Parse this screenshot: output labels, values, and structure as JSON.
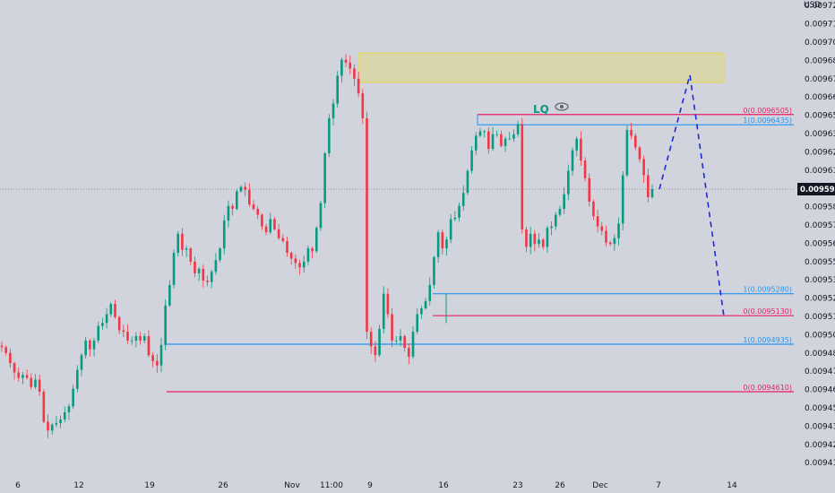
{
  "chart_data": {
    "type": "candlestick",
    "currency": "USD",
    "y_ticks": [
      "0.0097250",
      "0.0097125",
      "0.0097000",
      "0.0096875",
      "0.0096750",
      "0.0096625",
      "0.0096500",
      "0.0096375",
      "0.0096250",
      "0.0096125",
      "0.0095875",
      "0.0095750",
      "0.0095625",
      "0.0095500",
      "0.0095375",
      "0.0095250",
      "0.0095125",
      "0.0095000",
      "0.0094875",
      "0.0094750",
      "0.0094625",
      "0.0094500",
      "0.0094375",
      "0.0094250",
      "0.0094125"
    ],
    "ylim": [
      0.0094075,
      0.0097325
    ],
    "x_ticks": [
      "6",
      "12",
      "19",
      "26",
      "Nov",
      "11:00",
      "9",
      "16",
      "23",
      "26",
      "Dec",
      "7",
      "14"
    ],
    "current_price": {
      "label": "0.0095995",
      "value": 0.0095995
    },
    "annotations": {
      "lq_label": "LQ"
    },
    "fib_levels": [
      {
        "label": "0(0.0096505)",
        "value": 0.0096505,
        "color": "#e91e63"
      },
      {
        "label": "1(0.0096435)",
        "value": 0.0096435,
        "color": "#2196f3"
      },
      {
        "label": "1(0.0095280)",
        "value": 0.009528,
        "color": "#2196f3"
      },
      {
        "label": "0(0.0095130)",
        "value": 0.009513,
        "color": "#e91e63"
      },
      {
        "label": "1(0.0094935)",
        "value": 0.0094935,
        "color": "#2196f3"
      },
      {
        "label": "0(0.0094610)",
        "value": 0.009461,
        "color": "#e91e63"
      }
    ],
    "supply_zone": {
      "low": 0.0096725,
      "high": 0.0096925
    },
    "projection": {
      "x_labels": [
        "7",
        "~10",
        "~13"
      ],
      "y": [
        0.0095995,
        0.0096775,
        0.0095125
      ]
    },
    "series_close_path": [
      0.0094915,
      0.0094875,
      0.0094805,
      0.0094742,
      0.0094705,
      0.0094725,
      0.0094705,
      0.0094643,
      0.0094693,
      0.009461,
      0.0094405,
      0.0094345,
      0.0094385,
      0.0094395,
      0.0094421,
      0.009447,
      0.009451,
      0.009463,
      0.009476,
      0.009486,
      0.009496,
      0.00949,
      0.009496,
      0.009506,
      0.009508,
      0.009514,
      0.009521,
      0.009512,
      0.009503,
      0.009502,
      0.009496,
      0.009496,
      0.009499,
      0.009496,
      0.009499,
      0.009486,
      0.009482,
      0.009479,
      0.009493,
      0.00952,
      0.009534,
      0.009556,
      0.009569,
      0.009558,
      0.009559,
      0.00955,
      0.009542,
      0.009545,
      0.009537,
      0.009536,
      0.009543,
      0.009551,
      0.009559,
      0.009578,
      0.009588,
      0.009586,
      0.009598,
      0.009601,
      0.009599,
      0.009589,
      0.009586,
      0.009582,
      0.009574,
      0.00957,
      0.009579,
      0.009572,
      0.009566,
      0.009564,
      0.009556,
      0.009552,
      0.009549,
      0.009546,
      0.00955,
      0.009559,
      0.009557,
      0.009573,
      0.00959,
      0.009624,
      0.009648,
      0.009658,
      0.009677,
      0.009688,
      0.009686,
      0.009682,
      0.009675,
      0.009665,
      0.009648,
      0.009502,
      0.009492,
      0.009486,
      0.009504,
      0.009528,
      0.009514,
      0.009496,
      0.009496,
      0.009499,
      0.009491,
      0.009485,
      0.009502,
      0.009514,
      0.009518,
      0.009523,
      0.009534,
      0.009553,
      0.00957,
      0.009559,
      0.009565,
      0.009579,
      0.00958,
      0.009588,
      0.009597,
      0.009612,
      0.009626,
      0.009636,
      0.009639,
      0.009639,
      0.009627,
      0.009637,
      0.009637,
      0.009629,
      0.009634,
      0.009634,
      0.009637,
      0.009644,
      0.009572,
      0.00956,
      0.009569,
      0.009562,
      0.009565,
      0.00956,
      0.009573,
      0.009574,
      0.009582,
      0.009586,
      0.009596,
      0.009612,
      0.009626,
      0.009634,
      0.009619,
      0.009607,
      0.009591,
      0.009581,
      0.009574,
      0.009571,
      0.009563,
      0.009562,
      0.009566,
      0.009576,
      0.009609,
      0.00964,
      0.009636,
      0.009628,
      0.00962,
      0.009609,
      0.009594,
      0.0095995
    ]
  }
}
